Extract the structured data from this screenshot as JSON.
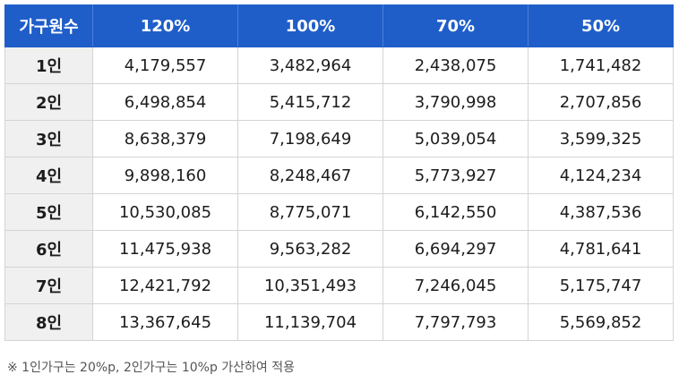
{
  "header": {
    "household_label": "가구원수",
    "columns": [
      "120%",
      "100%",
      "70%",
      "50%"
    ]
  },
  "rows": [
    {
      "household": "1인",
      "values": [
        "4,179,557",
        "3,482,964",
        "2,438,075",
        "1,741,482"
      ]
    },
    {
      "household": "2인",
      "values": [
        "6,498,854",
        "5,415,712",
        "3,790,998",
        "2,707,856"
      ]
    },
    {
      "household": "3인",
      "values": [
        "8,638,379",
        "7,198,649",
        "5,039,054",
        "3,599,325"
      ]
    },
    {
      "household": "4인",
      "values": [
        "9,898,160",
        "8,248,467",
        "5,773,927",
        "4,124,234"
      ]
    },
    {
      "household": "5인",
      "values": [
        "10,530,085",
        "8,775,071",
        "6,142,550",
        "4,387,536"
      ]
    },
    {
      "household": "6인",
      "values": [
        "11,475,938",
        "9,563,282",
        "6,694,297",
        "4,781,641"
      ]
    },
    {
      "household": "7인",
      "values": [
        "12,421,792",
        "10,351,493",
        "7,246,045",
        "5,175,747"
      ]
    },
    {
      "household": "8인",
      "values": [
        "13,367,645",
        "11,139,704",
        "7,797,793",
        "5,569,852"
      ]
    }
  ],
  "footnote": "※ 1인가구는 20%p, 2인가구는 10%p 가산하여 적용",
  "colors": {
    "header_bg": "#1f5ec9",
    "row_header_bg": "#f0f0f0",
    "border": "#d4d4d4"
  }
}
